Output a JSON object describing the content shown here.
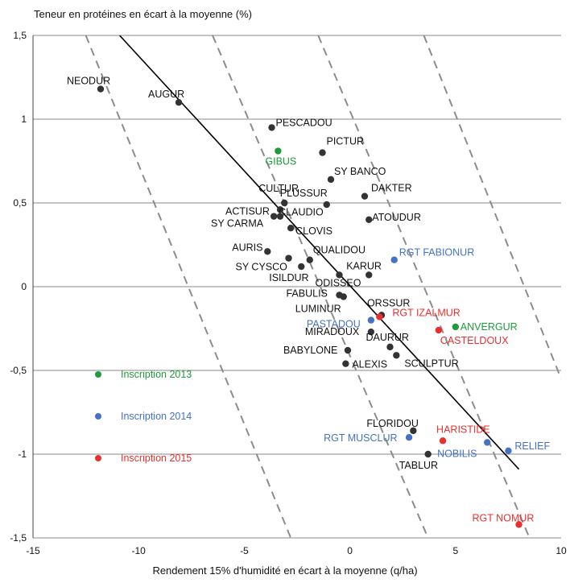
{
  "chart_data": {
    "type": "scatter",
    "title": "",
    "ylabel": "Teneur en protéines en écart à la moyenne  (%)",
    "xlabel": "Rendement 15% d'humidité en écart à la moyenne (q/ha)",
    "xlim": [
      -15,
      10
    ],
    "ylim": [
      -1.5,
      1.5
    ],
    "x_ticks": [
      "-15",
      "-10",
      "-5",
      "0",
      "5",
      "10"
    ],
    "y_ticks": [
      "1,5",
      "1",
      "0,5",
      "0",
      "-0,5",
      "-1",
      "-1,5"
    ],
    "x_tick_values": [
      -15,
      -10,
      -5,
      0,
      5,
      10
    ],
    "y_tick_values": [
      1.5,
      1,
      0.5,
      0,
      -0.5,
      -1,
      -1.5
    ],
    "grid": "horizontal",
    "colors": {
      "base": "#333333",
      "2013": "#1f9a3c",
      "2014": "#4472c4",
      "2015": "#e8312e",
      "grid": "#888888",
      "envelope": "#8c8c8c",
      "trend": "#000000"
    },
    "legend": [
      {
        "label": "Inscription 2013",
        "group": "2013"
      },
      {
        "label": "Inscription 2014",
        "group": "2014"
      },
      {
        "label": "Inscription 2015",
        "group": "2015"
      }
    ],
    "legend_placement": "bottom-left",
    "trend_line": {
      "from": [
        -10.9,
        1.5
      ],
      "to": [
        8,
        -1.09
      ]
    },
    "envelope_lines": [
      {
        "from": [
          -12.5,
          1.5
        ],
        "to": [
          -2.8,
          -1.5
        ]
      },
      {
        "from": [
          -6.5,
          1.5
        ],
        "to": [
          3.7,
          -1.5
        ]
      },
      {
        "from": [
          -1.5,
          1.5
        ],
        "to": [
          8.5,
          -1.5
        ]
      },
      {
        "from": [
          3.5,
          1.5
        ],
        "to": [
          10,
          -0.55
        ]
      }
    ],
    "points": [
      {
        "label": "NEODUR",
        "x": -11.8,
        "y": 1.18,
        "group": "base"
      },
      {
        "label": "AUGUR",
        "x": -8.1,
        "y": 1.1,
        "group": "base"
      },
      {
        "label": "PESCADOU",
        "x": -3.7,
        "y": 0.95,
        "group": "base"
      },
      {
        "label": "GIBUS",
        "x": -3.4,
        "y": 0.81,
        "group": "2013"
      },
      {
        "label": "PICTUR",
        "x": -1.3,
        "y": 0.8,
        "group": "base"
      },
      {
        "label": "SY BANCO",
        "x": -0.9,
        "y": 0.64,
        "group": "base"
      },
      {
        "label": "DAKTER",
        "x": 0.7,
        "y": 0.54,
        "group": "base"
      },
      {
        "label": "CULTUR",
        "x": -3.1,
        "y": 0.5,
        "group": "base"
      },
      {
        "label": "PLUSSUR",
        "x": -1.1,
        "y": 0.49,
        "group": "base"
      },
      {
        "label": "ACTISUR",
        "x": -3.3,
        "y": 0.46,
        "group": "base"
      },
      {
        "label": "CLAUDIO",
        "x": -3.6,
        "y": 0.42,
        "group": "base"
      },
      {
        "label": "SY CARMA",
        "x": -3.3,
        "y": 0.42,
        "group": "base"
      },
      {
        "label": "ATOUDUR",
        "x": 0.9,
        "y": 0.4,
        "group": "base"
      },
      {
        "label": "CLOVIS",
        "x": -2.8,
        "y": 0.35,
        "group": "base"
      },
      {
        "label": "AURIS",
        "x": -3.9,
        "y": 0.21,
        "group": "base"
      },
      {
        "label": "SY CYSCO",
        "x": -2.9,
        "y": 0.17,
        "group": "base"
      },
      {
        "label": "QUALIDOU",
        "x": -1.9,
        "y": 0.16,
        "group": "base"
      },
      {
        "label": "RGT FABIONUR",
        "x": 2.1,
        "y": 0.16,
        "group": "2014"
      },
      {
        "label": "ISILDUR",
        "x": -2.3,
        "y": 0.12,
        "group": "base"
      },
      {
        "label": "KARUR",
        "x": 0.9,
        "y": 0.07,
        "group": "base"
      },
      {
        "label": "ODISSEO",
        "x": -0.5,
        "y": 0.07,
        "group": "base"
      },
      {
        "label": "FABULIS",
        "x": -0.5,
        "y": -0.05,
        "group": "base"
      },
      {
        "label": "LUMINUR",
        "x": -0.3,
        "y": -0.06,
        "group": "base"
      },
      {
        "label": "ORSSUR",
        "x": 1.5,
        "y": -0.17,
        "group": "base"
      },
      {
        "label": "RGT IZALMUR",
        "x": 1.4,
        "y": -0.18,
        "group": "2015"
      },
      {
        "label": "PASTADOU",
        "x": 1.0,
        "y": -0.2,
        "group": "2014"
      },
      {
        "label": "MIRADOUX",
        "x": 1.0,
        "y": -0.27,
        "group": "base"
      },
      {
        "label": "ANVERGUR",
        "x": 5.0,
        "y": -0.24,
        "group": "2013"
      },
      {
        "label": "CASTELDOUX",
        "x": 4.2,
        "y": -0.26,
        "group": "2015"
      },
      {
        "label": "DAURUR",
        "x": 1.9,
        "y": -0.36,
        "group": "base"
      },
      {
        "label": "BABYLONE",
        "x": -0.1,
        "y": -0.38,
        "group": "base"
      },
      {
        "label": "SCULPTUR",
        "x": 2.2,
        "y": -0.41,
        "group": "base"
      },
      {
        "label": "ALEXIS",
        "x": -0.2,
        "y": -0.46,
        "group": "base"
      },
      {
        "label": "FLORIDOU",
        "x": 3.0,
        "y": -0.86,
        "group": "base"
      },
      {
        "label": "RGT MUSCLUR",
        "x": 2.8,
        "y": -0.9,
        "group": "2014"
      },
      {
        "label": "HARISTIDE",
        "x": 4.4,
        "y": -0.92,
        "group": "2015"
      },
      {
        "label": "NOBILIS",
        "x": 6.5,
        "y": -0.93,
        "group": "2014"
      },
      {
        "label": "RELIEF",
        "x": 7.5,
        "y": -0.98,
        "group": "2014"
      },
      {
        "label": "TABLUR",
        "x": 3.7,
        "y": -1.0,
        "group": "base"
      },
      {
        "label": "RGT NOMUR",
        "x": 8.0,
        "y": -1.42,
        "group": "2015"
      }
    ]
  }
}
